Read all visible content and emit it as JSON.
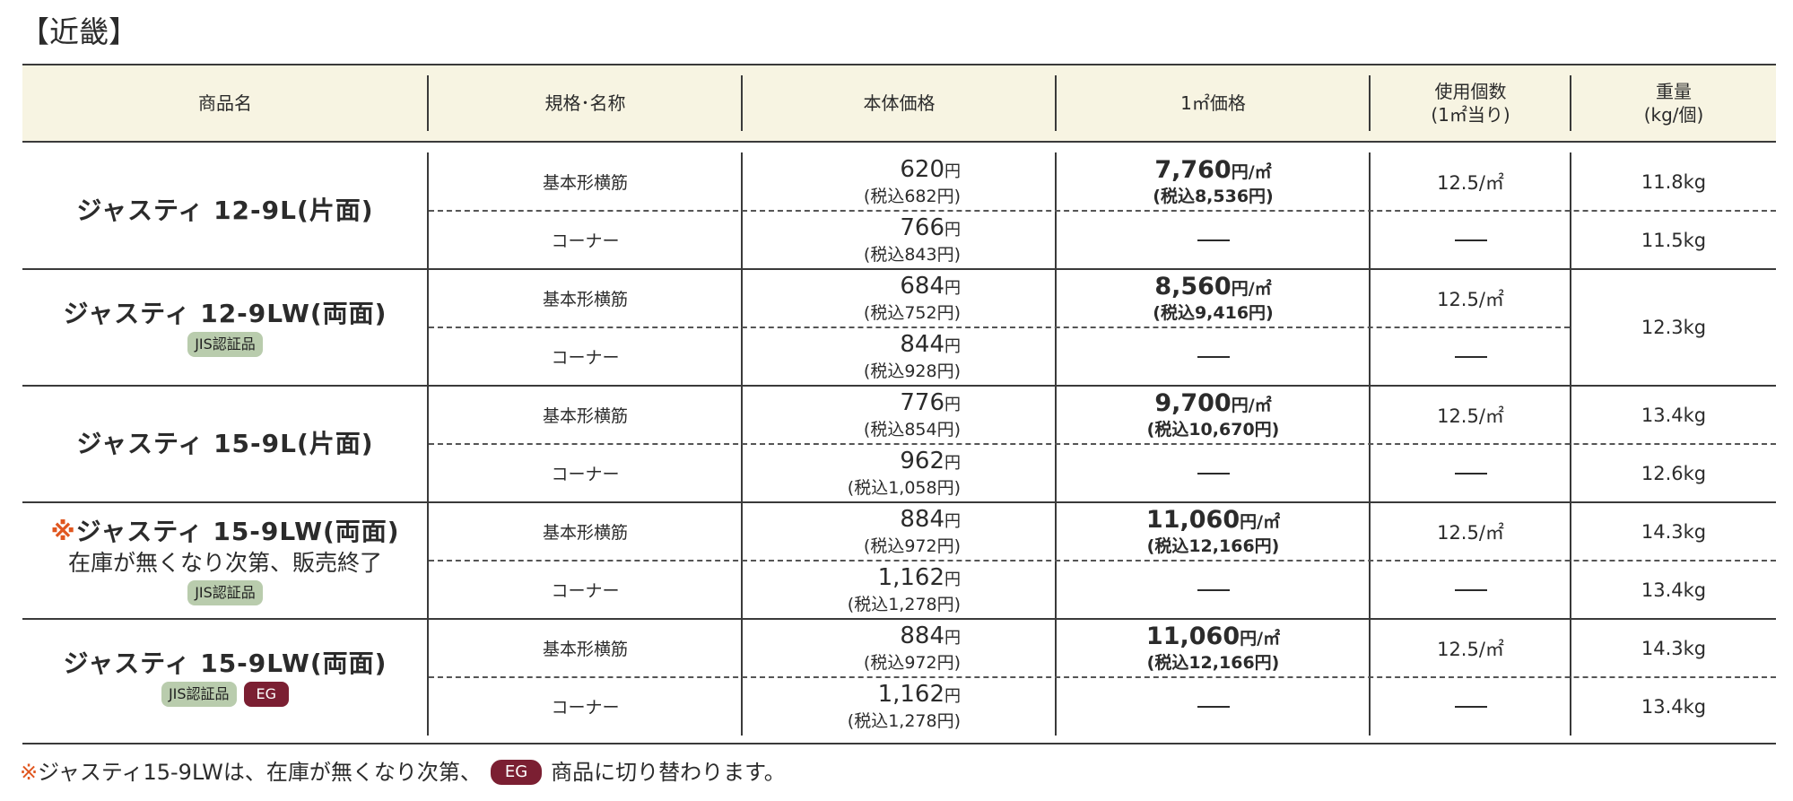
{
  "region_title": "【近畿】",
  "headers": {
    "name": "商品名",
    "spec": "規格･名称",
    "price": "本体価格",
    "sqm_price": "1㎡価格",
    "usage_line1": "使用個数",
    "usage_line2": "(1㎡当り)",
    "weight_line1": "重量",
    "weight_line2": "(kg/個)"
  },
  "products": [
    {
      "name": "ジャスティ 12-9L(片面)",
      "rows": [
        {
          "spec": "基本形横筋",
          "price": "620",
          "tax": "(税込682円)",
          "sqm": "7,760",
          "sqm_tax": "(税込8,536円)",
          "usage": "12.5/㎡",
          "weight": "11.8kg"
        },
        {
          "spec": "コーナー",
          "price": "766",
          "tax": "(税込843円)",
          "sqm": "",
          "sqm_tax": "",
          "usage": "",
          "weight": "11.5kg"
        }
      ]
    },
    {
      "name": "ジャスティ 12-9LW(両面)",
      "badges": [
        "JIS認証品"
      ],
      "weight_merged": "12.3kg",
      "rows": [
        {
          "spec": "基本形横筋",
          "price": "684",
          "tax": "(税込752円)",
          "sqm": "8,560",
          "sqm_tax": "(税込9,416円)",
          "usage": "12.5/㎡"
        },
        {
          "spec": "コーナー",
          "price": "844",
          "tax": "(税込928円)",
          "sqm": "",
          "sqm_tax": "",
          "usage": ""
        }
      ]
    },
    {
      "name": "ジャスティ 15-9L(片面)",
      "rows": [
        {
          "spec": "基本形横筋",
          "price": "776",
          "tax": "(税込854円)",
          "sqm": "9,700",
          "sqm_tax": "(税込10,670円)",
          "usage": "12.5/㎡",
          "weight": "13.4kg"
        },
        {
          "spec": "コーナー",
          "price": "962",
          "tax": "(税込1,058円)",
          "sqm": "",
          "sqm_tax": "",
          "usage": "",
          "weight": "12.6kg"
        }
      ]
    },
    {
      "mark": "※",
      "name": "ジャスティ 15-9LW(両面)",
      "note": "在庫が無くなり次第、販売終了",
      "badges": [
        "JIS認証品"
      ],
      "rows": [
        {
          "spec": "基本形横筋",
          "price": "884",
          "tax": "(税込972円)",
          "sqm": "11,060",
          "sqm_tax": "(税込12,166円)",
          "usage": "12.5/㎡",
          "weight": "14.3kg"
        },
        {
          "spec": "コーナー",
          "price": "1,162",
          "tax": "(税込1,278円)",
          "sqm": "",
          "sqm_tax": "",
          "usage": "",
          "weight": "13.4kg"
        }
      ]
    },
    {
      "name": "ジャスティ 15-9LW(両面)",
      "badges": [
        "JIS認証品",
        "EG"
      ],
      "rows": [
        {
          "spec": "基本形横筋",
          "price": "884",
          "tax": "(税込972円)",
          "sqm": "11,060",
          "sqm_tax": "(税込12,166円)",
          "usage": "12.5/㎡",
          "weight": "14.3kg"
        },
        {
          "spec": "コーナー",
          "price": "1,162",
          "tax": "(税込1,278円)",
          "sqm": "",
          "sqm_tax": "",
          "usage": "",
          "weight": "13.4kg"
        }
      ]
    }
  ],
  "units": {
    "yen": "円",
    "yen_per_sqm": "円/㎡"
  },
  "footnote": {
    "mark": "※",
    "text_before": "ジャスティ15-9LWは、在庫が無くなり次第、",
    "badge": "EG",
    "text_after": "商品に切り替わります。"
  },
  "colors": {
    "header_bg": "#f7f4e2",
    "jis_badge": "#b9ccad",
    "eg_badge": "#7b1f32",
    "mark": "#e0561f"
  }
}
